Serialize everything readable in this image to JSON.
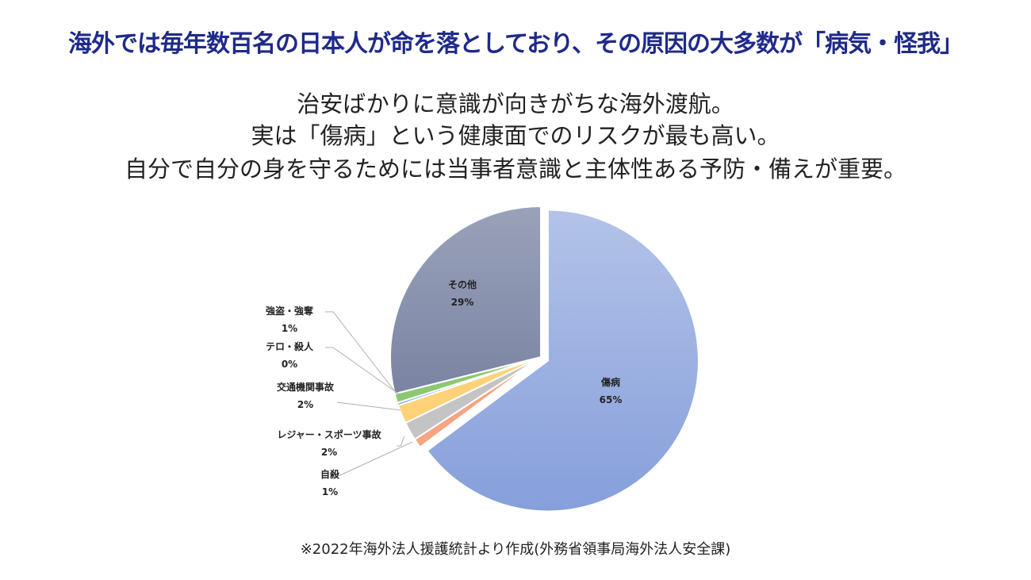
{
  "headline": "海外では毎年数百名の日本人が命を落としており、その原因の大多数が「病気・怪我」",
  "subtitle": [
    "治安ばかりに意識が向きがちな海外渡航。",
    "実は「傷病」という健康面でのリスクが最も高い。",
    "自分で自分の身を守るためには当事者意識と主体性ある予防・備えが重要。"
  ],
  "chart_data": {
    "type": "pie",
    "title": "",
    "slices": [
      {
        "name": "傷病",
        "value": 65,
        "label": "65%",
        "color": "#98aee0"
      },
      {
        "name": "自殺",
        "value": 1,
        "label": "1%",
        "color": "#f4a582"
      },
      {
        "name": "レジャー・スポーツ事故",
        "value": 2,
        "label": "2%",
        "color": "#c4c4c4"
      },
      {
        "name": "交通機関事故",
        "value": 2,
        "label": "2%",
        "color": "#ffd27a"
      },
      {
        "name": "テロ・殺人",
        "value": 0.3,
        "label": "0%",
        "color": "#7fb0e0"
      },
      {
        "name": "強盗・強奪",
        "value": 1,
        "label": "1%",
        "color": "#8cc870"
      },
      {
        "name": "その他",
        "value": 29,
        "label": "29%",
        "color": "#8a93ae"
      }
    ],
    "start": "12 o'clock, clockwise"
  },
  "footnote": "※2022年海外法人援護統計より作成(外務省領事局海外法人安全課)"
}
